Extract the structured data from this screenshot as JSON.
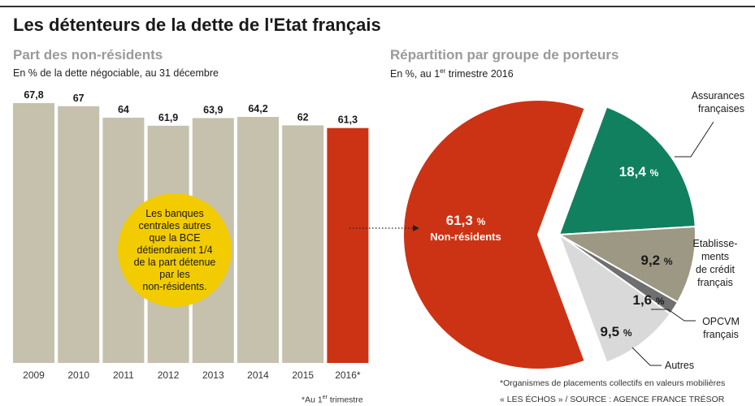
{
  "title": "Les détenteurs de la dette de l'Etat français",
  "left_panel": {
    "title": "Part des non-résidents",
    "caption": "En % de la dette négociable, au 31 décembre",
    "bubble_lines": [
      "Les banques",
      "centrales autres",
      "que la BCE",
      "détiendraient 1/4",
      "de la part détenue",
      "par les",
      "non-résidents."
    ],
    "footnote_pre": "*Au 1",
    "footnote_sup": "er",
    "footnote_post": " trimestre"
  },
  "right_panel": {
    "title": "Répartition par groupe de porteurs",
    "caption_pre": "En %, au 1",
    "caption_sup": "er",
    "caption_post": " trimestre 2016",
    "note": "*Organismes de placements collectifs en valeurs mobilières",
    "source": "« LES ÉCHOS » / SOURCE : AGENCE FRANCE TRÉSOR"
  },
  "colors": {
    "bar": "#c5c1ad",
    "bar_highlight": "#cc3314",
    "bubble": "#f2cc00",
    "non_residents": "#cc3314",
    "assurances": "#10805f",
    "etablissements": "#9c9883",
    "opcvm": "#6f6f6f",
    "autres": "#d9d9d9"
  },
  "chart_data": [
    {
      "type": "bar",
      "title": "Part des non-résidents",
      "categories": [
        "2009",
        "2010",
        "2011",
        "2012",
        "2013",
        "2014",
        "2015",
        "2016*"
      ],
      "values": [
        67.8,
        67,
        64,
        61.9,
        63.9,
        64.2,
        62,
        61.3
      ],
      "value_labels": [
        "67,8",
        "67",
        "64",
        "61,9",
        "63,9",
        "64,2",
        "62",
        "61,3"
      ],
      "highlight_index": 7,
      "ylim": [
        0,
        67.8
      ]
    },
    {
      "type": "pie",
      "title": "Répartition par groupe de porteurs",
      "slices": [
        {
          "name": "Non-résidents",
          "value": 61.3,
          "value_label": "61,3",
          "unit": "%",
          "color": "#cc3314",
          "exploded": true
        },
        {
          "name": "Assurances françaises",
          "value": 18.4,
          "value_label": "18,4",
          "unit": "%",
          "color": "#10805f"
        },
        {
          "name": "Etablissements de crédit français",
          "value": 9.2,
          "value_label": "9,2",
          "unit": "%",
          "color": "#9c9883"
        },
        {
          "name": "OPCVM français",
          "value": 1.6,
          "value_label": "1,6",
          "unit": "%",
          "color": "#6f6f6f"
        },
        {
          "name": "Autres",
          "value": 9.5,
          "value_label": "9,5",
          "unit": "%",
          "color": "#d9d9d9"
        }
      ],
      "external_labels": {
        "assurances": [
          "Assurances",
          "françaises"
        ],
        "etablissements": [
          "Etablisse-",
          "ments",
          "de crédit",
          "français"
        ],
        "opcvm": [
          "OPCVM",
          "français"
        ],
        "autres": [
          "Autres"
        ]
      }
    }
  ]
}
